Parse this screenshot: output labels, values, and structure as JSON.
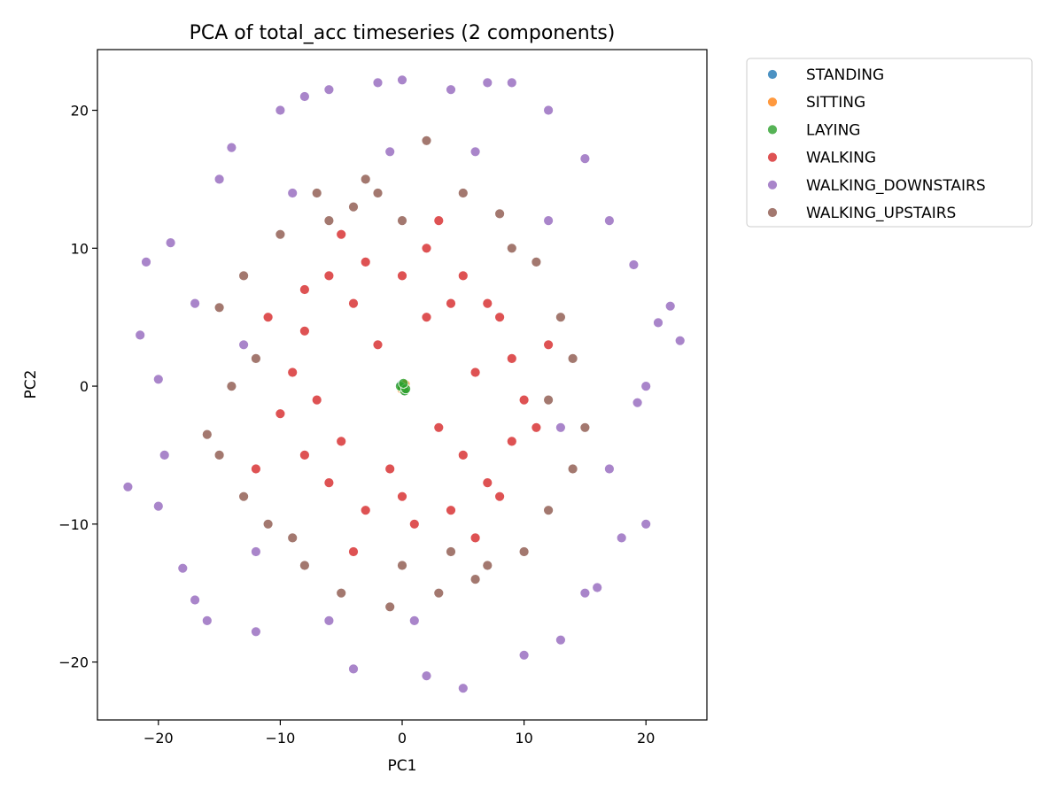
{
  "chart_data": {
    "type": "scatter",
    "title": "PCA of total_acc timeseries (2 components)",
    "xlabel": "PC1",
    "ylabel": "PC2",
    "xlim": [
      -25,
      25
    ],
    "ylim": [
      -24.2,
      24.4
    ],
    "xticks": [
      -20,
      -10,
      0,
      10,
      20
    ],
    "yticks": [
      -20,
      -10,
      0,
      10,
      20
    ],
    "xtick_labels": [
      "−20",
      "−10",
      "0",
      "10",
      "20"
    ],
    "ytick_labels": [
      "−20",
      "−10",
      "0",
      "10",
      "20"
    ],
    "grid": false,
    "legend_position": "outside top-right",
    "series": [
      {
        "name": "STANDING",
        "color": "#1f77b4",
        "points": [
          [
            0.05,
            -0.15
          ],
          [
            -0.1,
            0.1
          ],
          [
            0.2,
            0.05
          ],
          [
            0.1,
            -0.3
          ]
        ]
      },
      {
        "name": "SITTING",
        "color": "#ff7f0e",
        "points": [
          [
            0.15,
            -0.05
          ],
          [
            -0.05,
            -0.2
          ],
          [
            0.25,
            0.15
          ]
        ]
      },
      {
        "name": "LAYING",
        "color": "#2ca02c",
        "points": [
          [
            0.0,
            -0.1
          ],
          [
            0.2,
            -0.35
          ],
          [
            -0.15,
            0.0
          ],
          [
            0.3,
            -0.2
          ],
          [
            0.1,
            0.2
          ]
        ]
      },
      {
        "name": "WALKING",
        "color": "#d62728",
        "points": [
          [
            -6,
            8
          ],
          [
            -3,
            9
          ],
          [
            2,
            10
          ],
          [
            5,
            8
          ],
          [
            7,
            6
          ],
          [
            -8,
            4
          ],
          [
            -9,
            1
          ],
          [
            -10,
            -2
          ],
          [
            -8,
            -5
          ],
          [
            -6,
            -7
          ],
          [
            -3,
            -9
          ],
          [
            1,
            -10
          ],
          [
            4,
            -9
          ],
          [
            7,
            -7
          ],
          [
            9,
            -4
          ],
          [
            10,
            -1
          ],
          [
            9,
            2
          ],
          [
            8,
            5
          ],
          [
            -4,
            6
          ],
          [
            4,
            6
          ],
          [
            -5,
            -4
          ],
          [
            5,
            -5
          ],
          [
            -2,
            3
          ],
          [
            3,
            -3
          ],
          [
            -7,
            -1
          ],
          [
            6,
            1
          ],
          [
            0,
            8
          ],
          [
            0,
            -8
          ],
          [
            -11,
            5
          ],
          [
            11,
            -3
          ],
          [
            -1,
            -6
          ],
          [
            2,
            5
          ],
          [
            -8,
            7
          ],
          [
            8,
            -8
          ],
          [
            -12,
            -6
          ],
          [
            12,
            3
          ],
          [
            -5,
            11
          ],
          [
            6,
            -11
          ],
          [
            3,
            12
          ],
          [
            -4,
            -12
          ]
        ]
      },
      {
        "name": "WALKING_DOWNSTAIRS",
        "color": "#9467bd",
        "points": [
          [
            -22.5,
            -7.3
          ],
          [
            -21,
            9
          ],
          [
            -21.5,
            3.7
          ],
          [
            -20,
            -8.7
          ],
          [
            -19,
            10.4
          ],
          [
            -18,
            -13.2
          ],
          [
            -17,
            -15.5
          ],
          [
            -16,
            -17
          ],
          [
            -14,
            17.3
          ],
          [
            -12,
            -17.8
          ],
          [
            -10,
            20
          ],
          [
            -8,
            21
          ],
          [
            -6,
            21.5
          ],
          [
            -4,
            -20.5
          ],
          [
            -2,
            22
          ],
          [
            0,
            22.2
          ],
          [
            2,
            -21
          ],
          [
            4,
            21.5
          ],
          [
            5,
            -21.9
          ],
          [
            7,
            22
          ],
          [
            9,
            22
          ],
          [
            10,
            -19.5
          ],
          [
            12,
            20
          ],
          [
            13,
            -18.4
          ],
          [
            15,
            16.5
          ],
          [
            16,
            -14.6
          ],
          [
            17,
            12
          ],
          [
            18,
            -11
          ],
          [
            19,
            8.8
          ],
          [
            20,
            -10
          ],
          [
            21,
            4.6
          ],
          [
            22,
            5.8
          ],
          [
            22.8,
            3.3
          ],
          [
            20,
            0
          ],
          [
            -20,
            0.5
          ],
          [
            -19.5,
            -5
          ],
          [
            19.3,
            -1.2
          ],
          [
            -15,
            15
          ],
          [
            15,
            -15
          ],
          [
            -17,
            6
          ],
          [
            17,
            -6
          ],
          [
            -12,
            -12
          ],
          [
            12,
            12
          ],
          [
            -6,
            -17
          ],
          [
            6,
            17
          ],
          [
            -1,
            17
          ],
          [
            1,
            -17
          ],
          [
            -13,
            3
          ],
          [
            13,
            -3
          ],
          [
            -9,
            14
          ]
        ]
      },
      {
        "name": "WALKING_UPSTAIRS",
        "color": "#8c564b",
        "points": [
          [
            -16,
            -3.5
          ],
          [
            -15,
            5.7
          ],
          [
            -13,
            8
          ],
          [
            -10,
            11
          ],
          [
            -7,
            14
          ],
          [
            -3,
            15
          ],
          [
            2,
            17.8
          ],
          [
            5,
            14
          ],
          [
            8,
            12.5
          ],
          [
            11,
            9
          ],
          [
            13,
            5
          ],
          [
            15,
            -3
          ],
          [
            14,
            -6
          ],
          [
            12,
            -9
          ],
          [
            10,
            -12
          ],
          [
            7,
            -13
          ],
          [
            3,
            -15
          ],
          [
            -1,
            -16
          ],
          [
            -5,
            -15
          ],
          [
            -8,
            -13
          ],
          [
            -11,
            -10
          ],
          [
            -13,
            -8
          ],
          [
            -15,
            -5
          ],
          [
            -12,
            2
          ],
          [
            12,
            -1
          ],
          [
            -6,
            12
          ],
          [
            6,
            -14
          ],
          [
            -2,
            14
          ],
          [
            9,
            10
          ],
          [
            -9,
            -11
          ],
          [
            4,
            -12
          ],
          [
            -4,
            13
          ],
          [
            14,
            2
          ],
          [
            -14,
            0
          ],
          [
            0,
            -13
          ],
          [
            0,
            12
          ]
        ]
      }
    ]
  }
}
